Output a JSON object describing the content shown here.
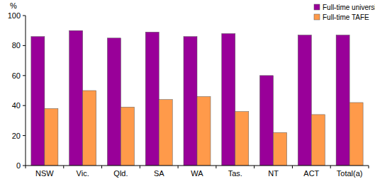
{
  "chart_data": {
    "type": "bar",
    "y_label": "%",
    "categories": [
      "NSW",
      "Vic.",
      "Qld.",
      "SA",
      "WA",
      "Tas.",
      "NT",
      "ACT",
      "Total(a)"
    ],
    "series": [
      {
        "name": "Full-time university",
        "color": "#990099",
        "values": [
          86,
          90,
          85,
          89,
          86,
          88,
          60,
          87,
          87
        ]
      },
      {
        "name": "Full-time TAFE",
        "color": "#ff9a4a",
        "values": [
          38,
          50,
          39,
          44,
          46,
          36,
          22,
          34,
          42
        ]
      }
    ],
    "ylim": [
      0,
      100
    ],
    "yticks": [
      0,
      20,
      40,
      60,
      80,
      100
    ],
    "grid": false,
    "legend": "top-right"
  }
}
